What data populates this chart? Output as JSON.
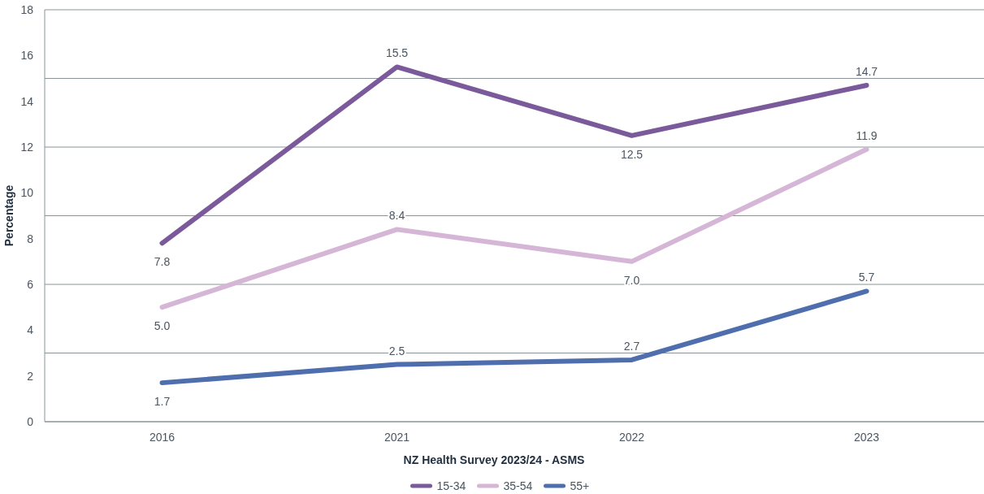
{
  "chart_data": {
    "type": "line",
    "xlabel": "NZ Health Survey 2023/24 - ASMS",
    "ylabel": "Percentage",
    "categories": [
      "2016",
      "2021",
      "2022",
      "2023"
    ],
    "series": [
      {
        "name": "15-34",
        "color": "#7b5a9b",
        "values": [
          7.8,
          15.5,
          12.5,
          14.7
        ],
        "value_labels": [
          "7.8",
          "15.5",
          "12.5",
          "14.7"
        ]
      },
      {
        "name": "35-54",
        "color": "#d5b6d6",
        "values": [
          5,
          8.4,
          7,
          11.9
        ],
        "value_labels": [
          "5.0",
          "8.4",
          "7.0",
          "11.9"
        ]
      },
      {
        "name": "55+",
        "color": "#4f6eae",
        "values": [
          1.7,
          2.5,
          2.7,
          5.7
        ],
        "value_labels": [
          "1.7",
          "2.5",
          "2.7",
          "5.7"
        ]
      }
    ],
    "ylim": [
      0,
      18
    ],
    "yticks": [
      0,
      2,
      4,
      6,
      8,
      10,
      12,
      14,
      16,
      18,
      {
        "value": 3,
        "label": null
      },
      {
        "value": 9,
        "label": null
      },
      {
        "value": 15,
        "label": null
      }
    ],
    "grid": "y",
    "legend": "bottom",
    "marker": "none",
    "line_style": "solid"
  }
}
